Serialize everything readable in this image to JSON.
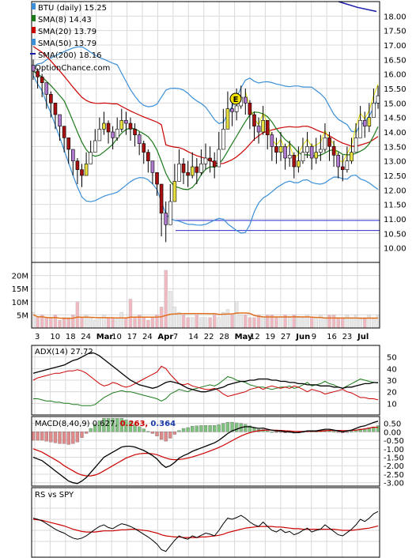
{
  "chart_data": [
    {
      "type": "candlestick",
      "panel": "price",
      "title": "BTU (daily) 15.25",
      "legend_placement": "top-left",
      "grid": true,
      "watermark": "OptionChance.com",
      "ylim": [
        9.5,
        18.5
      ],
      "y_ticks": [
        "18.00",
        "17.50",
        "17.00",
        "16.50",
        "16.00",
        "15.50",
        "15.00",
        "14.50",
        "14.00",
        "13.50",
        "13.00",
        "12.50",
        "12.00",
        "11.50",
        "11.00",
        "10.50",
        "10.00"
      ],
      "x_tick_labels": [
        "3",
        "10",
        "18",
        "24",
        "Mar",
        "10",
        "17",
        "24",
        "Apr",
        "7",
        "14",
        "22",
        "28",
        "May",
        "12",
        "19",
        "27",
        "Jun",
        "9",
        "16",
        "23",
        "Jul"
      ],
      "series": [
        {
          "name": "SMA(8) 14.43",
          "color": "#1a7a1a"
        },
        {
          "name": "SMA(20) 13.79",
          "color": "#cc0000"
        },
        {
          "name": "SMA(50) 13.79",
          "color": "#3a8fd8"
        },
        {
          "name": "SMA(200) 18.16",
          "color": "#1a1aa8"
        }
      ],
      "annotations": [
        {
          "text": "E",
          "label": "earnings"
        }
      ],
      "horizontal_lines": [
        10.95,
        10.6
      ],
      "closes": [
        16.1,
        15.9,
        15.7,
        15.3,
        15.0,
        14.6,
        14.2,
        13.8,
        13.4,
        13.0,
        12.7,
        12.5,
        12.9,
        13.3,
        13.7,
        14.1,
        14.3,
        14.0,
        13.8,
        14.1,
        14.4,
        14.3,
        14.1,
        13.9,
        13.6,
        13.3,
        13.0,
        12.6,
        12.2,
        11.2,
        10.8,
        11.6,
        12.3,
        12.9,
        12.6,
        12.5,
        12.8,
        12.6,
        12.9,
        13.1,
        13.0,
        12.8,
        13.4,
        14.1,
        14.8,
        14.7,
        14.9,
        15.2,
        15.0,
        14.6,
        14.2,
        14.0,
        14.4,
        13.9,
        13.5,
        13.3,
        13.5,
        13.1,
        13.2,
        12.8,
        13.0,
        13.3,
        13.5,
        13.1,
        13.3,
        13.4,
        13.8,
        13.5,
        13.2,
        12.8,
        12.7,
        13.0,
        13.3,
        13.8,
        14.4,
        14.2,
        14.5,
        15.0,
        15.25
      ],
      "highs": [
        16.5,
        16.2,
        16.0,
        15.7,
        15.4,
        15.0,
        14.6,
        14.2,
        13.8,
        13.4,
        13.1,
        12.9,
        13.3,
        13.7,
        14.1,
        14.5,
        14.7,
        14.4,
        14.2,
        14.5,
        14.8,
        14.7,
        14.5,
        14.3,
        14.0,
        13.7,
        13.4,
        13.0,
        12.6,
        11.8,
        11.6,
        12.2,
        12.9,
        13.4,
        13.1,
        13.0,
        13.3,
        13.1,
        13.4,
        13.6,
        13.5,
        13.3,
        14.0,
        14.8,
        15.4,
        15.3,
        15.5,
        15.6,
        15.5,
        15.1,
        14.7,
        14.5,
        14.9,
        14.4,
        14.0,
        13.8,
        14.0,
        13.6,
        13.7,
        13.3,
        13.5,
        13.8,
        14.0,
        13.6,
        13.8,
        13.9,
        14.3,
        14.0,
        13.7,
        13.3,
        13.2,
        13.5,
        13.8,
        14.3,
        14.9,
        14.7,
        15.0,
        15.5,
        15.6
      ],
      "lows": [
        15.8,
        15.5,
        15.2,
        14.8,
        14.5,
        14.1,
        13.7,
        13.3,
        12.9,
        12.5,
        12.2,
        12.1,
        12.5,
        12.9,
        13.3,
        13.7,
        13.9,
        13.6,
        13.4,
        13.7,
        14.0,
        13.9,
        13.7,
        13.5,
        13.2,
        12.9,
        12.6,
        12.2,
        11.8,
        10.4,
        10.2,
        11.0,
        11.8,
        12.4,
        12.2,
        12.1,
        12.4,
        12.2,
        12.5,
        12.7,
        12.6,
        12.4,
        12.9,
        13.6,
        14.3,
        14.2,
        14.4,
        14.8,
        14.6,
        14.1,
        13.7,
        13.6,
        13.9,
        13.4,
        13.0,
        12.9,
        13.0,
        12.7,
        12.8,
        12.4,
        12.6,
        12.9,
        13.1,
        12.7,
        12.9,
        13.0,
        13.3,
        13.0,
        12.8,
        12.4,
        12.3,
        12.6,
        12.9,
        13.3,
        13.9,
        13.8,
        14.0,
        14.5,
        14.8
      ]
    },
    {
      "type": "bar",
      "panel": "volume",
      "y_ticks": [
        "20M",
        "15M",
        "10M",
        "5M"
      ],
      "ylim": [
        0,
        25
      ],
      "volume_millions": [
        6,
        4,
        5,
        4,
        4,
        5,
        3,
        4,
        4,
        5,
        10,
        4,
        5,
        4,
        3,
        4,
        5,
        4,
        4,
        4,
        6,
        4,
        11,
        4,
        5,
        4,
        3,
        4,
        5,
        8,
        22,
        14,
        8,
        6,
        5,
        4,
        4,
        5,
        4,
        4,
        4,
        5,
        4,
        6,
        7,
        5,
        10,
        5,
        5,
        4,
        4,
        5,
        4,
        5,
        5,
        4,
        4,
        5,
        4,
        5,
        4,
        4,
        5,
        4,
        4,
        5,
        4,
        5,
        5,
        4,
        4,
        5,
        4,
        5,
        4,
        4,
        5,
        4,
        5
      ],
      "average_color": "#e07020"
    },
    {
      "type": "line",
      "panel": "adx",
      "legend": "ADX(14) 27.72",
      "y_ticks": [
        "50",
        "40",
        "30",
        "20",
        "10"
      ],
      "ylim": [
        0,
        60
      ],
      "reference_line": 20,
      "series": [
        {
          "name": "ADX(14) 27.72",
          "color": "#000000"
        },
        {
          "name": "+DI",
          "color": "#1a7a1a"
        },
        {
          "name": "-DI",
          "color": "#cc0000"
        }
      ],
      "adx": [
        36,
        37,
        38,
        39,
        40,
        41,
        42,
        43,
        45,
        47,
        48,
        50,
        52,
        54,
        53,
        51,
        48,
        45,
        42,
        39,
        36,
        33,
        30,
        28,
        26,
        25,
        24,
        23,
        24,
        26,
        28,
        29,
        28,
        27,
        25,
        23,
        22,
        21,
        20,
        20,
        21,
        22,
        23,
        24,
        26,
        27,
        28,
        29,
        29,
        30,
        30,
        31,
        31,
        31,
        30,
        30,
        29,
        29,
        28,
        28,
        27,
        27,
        26,
        26,
        26,
        25,
        25,
        25,
        24,
        24,
        23,
        24,
        24,
        25,
        26,
        27,
        27,
        28,
        27.7
      ],
      "plus_di": [
        14,
        14,
        13,
        12,
        12,
        11,
        11,
        10,
        10,
        9,
        9,
        8,
        8,
        8,
        9,
        12,
        15,
        17,
        19,
        20,
        21,
        20,
        20,
        19,
        18,
        17,
        16,
        15,
        14,
        12,
        14,
        18,
        20,
        22,
        21,
        20,
        22,
        23,
        24,
        25,
        26,
        25,
        27,
        30,
        33,
        32,
        30,
        29,
        28,
        26,
        25,
        24,
        24,
        23,
        22,
        23,
        24,
        24,
        25,
        23,
        24,
        26,
        28,
        25,
        26,
        27,
        29,
        27,
        26,
        24,
        23,
        25,
        27,
        29,
        31,
        30,
        29,
        28,
        28
      ],
      "minus_di": [
        30,
        32,
        33,
        34,
        35,
        36,
        36,
        37,
        38,
        38,
        39,
        38,
        36,
        33,
        30,
        27,
        25,
        26,
        28,
        27,
        25,
        24,
        25,
        27,
        29,
        31,
        33,
        35,
        37,
        42,
        40,
        35,
        31,
        27,
        26,
        27,
        25,
        24,
        23,
        22,
        22,
        23,
        21,
        18,
        16,
        17,
        18,
        19,
        20,
        22,
        23,
        24,
        22,
        24,
        25,
        24,
        23,
        24,
        23,
        25,
        24,
        22,
        20,
        22,
        21,
        20,
        18,
        19,
        20,
        21,
        22,
        20,
        19,
        17,
        15,
        15,
        14,
        14,
        13
      ]
    },
    {
      "type": "bar",
      "panel": "macd",
      "legend": "MACD(8,40,9) 0.627,",
      "legend_values": [
        {
          "text": "0.263,",
          "color": "#cc0000"
        },
        {
          "text": "0.364",
          "color": "#1a3aa8"
        }
      ],
      "y_ticks": [
        "0.50",
        "0.00",
        "-0.50",
        "-1.00",
        "-1.50",
        "-2.00",
        "-2.50",
        "-3.00"
      ],
      "ylim": [
        -3.2,
        0.9
      ],
      "macd": [
        -1.5,
        -1.6,
        -1.7,
        -1.9,
        -2.1,
        -2.3,
        -2.5,
        -2.7,
        -2.9,
        -3.0,
        -3.05,
        -2.9,
        -2.7,
        -2.4,
        -2.1,
        -1.8,
        -1.5,
        -1.35,
        -1.2,
        -1.05,
        -0.9,
        -0.85,
        -0.85,
        -0.9,
        -1.0,
        -1.1,
        -1.25,
        -1.4,
        -1.6,
        -1.9,
        -2.1,
        -2.0,
        -1.8,
        -1.55,
        -1.4,
        -1.3,
        -1.15,
        -1.05,
        -0.95,
        -0.85,
        -0.75,
        -0.65,
        -0.5,
        -0.3,
        -0.1,
        0.05,
        0.15,
        0.25,
        0.3,
        0.3,
        0.25,
        0.2,
        0.22,
        0.15,
        0.1,
        0.05,
        0.05,
        0.0,
        0.0,
        -0.05,
        -0.05,
        0.0,
        0.05,
        0.05,
        0.05,
        0.1,
        0.15,
        0.15,
        0.1,
        0.05,
        0.0,
        0.05,
        0.1,
        0.2,
        0.3,
        0.35,
        0.45,
        0.55,
        0.627
      ],
      "signal": [
        -1.0,
        -1.1,
        -1.2,
        -1.35,
        -1.5,
        -1.65,
        -1.8,
        -2.0,
        -2.15,
        -2.3,
        -2.45,
        -2.55,
        -2.6,
        -2.6,
        -2.55,
        -2.45,
        -2.3,
        -2.15,
        -2.0,
        -1.85,
        -1.7,
        -1.55,
        -1.45,
        -1.35,
        -1.3,
        -1.27,
        -1.27,
        -1.3,
        -1.35,
        -1.45,
        -1.55,
        -1.62,
        -1.65,
        -1.63,
        -1.6,
        -1.55,
        -1.48,
        -1.4,
        -1.32,
        -1.23,
        -1.13,
        -1.03,
        -0.92,
        -0.8,
        -0.66,
        -0.52,
        -0.38,
        -0.25,
        -0.14,
        -0.05,
        0.02,
        0.06,
        0.09,
        0.1,
        0.1,
        0.09,
        0.08,
        0.06,
        0.05,
        0.03,
        0.02,
        0.02,
        0.02,
        0.03,
        0.03,
        0.04,
        0.06,
        0.08,
        0.08,
        0.08,
        0.07,
        0.07,
        0.08,
        0.1,
        0.13,
        0.17,
        0.22,
        0.27,
        0.263
      ],
      "colors": {
        "macd": "#000000",
        "signal": "#cc0000",
        "hist_up": "#7fc37f",
        "hist_down": "#e08a8a"
      }
    },
    {
      "type": "line",
      "panel": "relative_strength",
      "legend": "RS vs SPY",
      "series": [
        {
          "name": "RS vs SPY",
          "color": "#000000"
        },
        {
          "name": "",
          "color": "#cc0000"
        }
      ],
      "rs": [
        0.62,
        0.6,
        0.57,
        0.52,
        0.47,
        0.42,
        0.38,
        0.35,
        0.3,
        0.26,
        0.24,
        0.26,
        0.3,
        0.36,
        0.42,
        0.47,
        0.5,
        0.45,
        0.43,
        0.48,
        0.52,
        0.5,
        0.47,
        0.43,
        0.38,
        0.33,
        0.28,
        0.22,
        0.15,
        0.05,
        0.02,
        0.12,
        0.22,
        0.3,
        0.26,
        0.24,
        0.3,
        0.27,
        0.31,
        0.35,
        0.33,
        0.3,
        0.4,
        0.52,
        0.62,
        0.6,
        0.63,
        0.67,
        0.62,
        0.55,
        0.5,
        0.47,
        0.55,
        0.47,
        0.4,
        0.37,
        0.42,
        0.36,
        0.38,
        0.32,
        0.35,
        0.4,
        0.44,
        0.37,
        0.4,
        0.42,
        0.5,
        0.44,
        0.38,
        0.32,
        0.3,
        0.36,
        0.42,
        0.5,
        0.6,
        0.56,
        0.62,
        0.7,
        0.74
      ],
      "rs_avg": [
        0.6,
        0.59,
        0.58,
        0.56,
        0.54,
        0.52,
        0.5,
        0.48,
        0.45,
        0.42,
        0.4,
        0.38,
        0.37,
        0.37,
        0.37,
        0.38,
        0.39,
        0.39,
        0.39,
        0.4,
        0.41,
        0.41,
        0.42,
        0.42,
        0.41,
        0.4,
        0.39,
        0.37,
        0.35,
        0.32,
        0.3,
        0.29,
        0.28,
        0.28,
        0.27,
        0.27,
        0.27,
        0.27,
        0.28,
        0.28,
        0.29,
        0.3,
        0.31,
        0.33,
        0.36,
        0.38,
        0.4,
        0.42,
        0.44,
        0.45,
        0.46,
        0.47,
        0.47,
        0.47,
        0.47,
        0.46,
        0.46,
        0.45,
        0.44,
        0.43,
        0.43,
        0.42,
        0.42,
        0.42,
        0.42,
        0.42,
        0.42,
        0.42,
        0.42,
        0.41,
        0.4,
        0.4,
        0.4,
        0.41,
        0.42,
        0.43,
        0.44,
        0.46,
        0.48
      ]
    }
  ]
}
